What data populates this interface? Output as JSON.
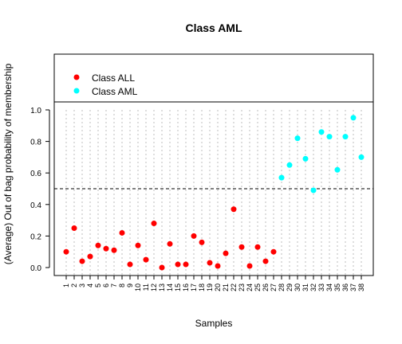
{
  "chart_data": {
    "type": "scatter",
    "title": "Class AML",
    "xlabel": "Samples",
    "ylabel": "(Average) Out of bag probability of membership",
    "ylim": [
      0,
      1
    ],
    "y_ticks": [
      "0.0",
      "0.2",
      "0.4",
      "0.6",
      "0.8",
      "1.0"
    ],
    "x_tick_labels": [
      "1",
      "2",
      "3",
      "4",
      "5",
      "6",
      "7",
      "8",
      "9",
      "10",
      "11",
      "12",
      "13",
      "14",
      "15",
      "16",
      "17",
      "18",
      "19",
      "20",
      "21",
      "22",
      "23",
      "24",
      "25",
      "26",
      "27",
      "28",
      "29",
      "30",
      "31",
      "32",
      "33",
      "34",
      "35",
      "36",
      "37",
      "38"
    ],
    "threshold": 0.5,
    "grid": "vertical dotted lines at each sample",
    "legend_position": "top-left (inside top panel)",
    "series": [
      {
        "name": "Class ALL",
        "color": "#ff0000",
        "x": [
          1,
          2,
          3,
          4,
          5,
          6,
          7,
          8,
          9,
          10,
          11,
          12,
          13,
          14,
          15,
          16,
          17,
          18,
          19,
          20,
          21,
          22,
          23,
          24,
          25,
          26,
          27
        ],
        "values": [
          0.1,
          0.25,
          0.04,
          0.07,
          0.14,
          0.12,
          0.11,
          0.22,
          0.02,
          0.14,
          0.05,
          0.28,
          0.0,
          0.15,
          0.02,
          0.02,
          0.2,
          0.16,
          0.03,
          0.01,
          0.09,
          0.37,
          0.13,
          0.01,
          0.13,
          0.04,
          0.1
        ]
      },
      {
        "name": "Class AML",
        "color": "#00ffff",
        "x": [
          28,
          29,
          30,
          31,
          32,
          33,
          34,
          35,
          36,
          37,
          38
        ],
        "values": [
          0.57,
          0.65,
          0.82,
          0.69,
          0.49,
          0.86,
          0.83,
          0.62,
          0.83,
          0.95,
          0.7
        ]
      }
    ]
  }
}
